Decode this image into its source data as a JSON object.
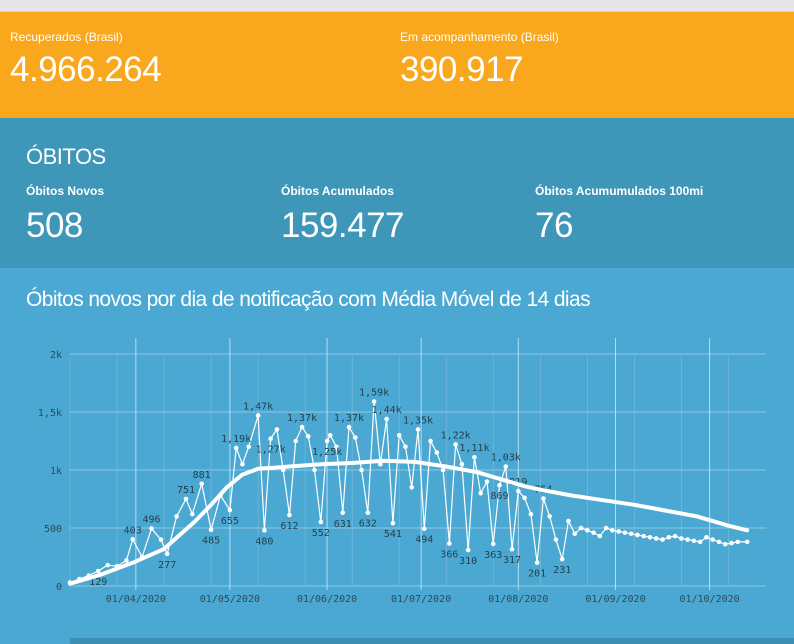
{
  "summary": {
    "recuperados_label": "Recuperados (Brasil)",
    "recuperados_value": "4.966.264",
    "acompanhamento_label": "Em acompanhamento (Brasil)",
    "acompanhamento_value": "390.917"
  },
  "obitos": {
    "title": "ÓBITOS",
    "novos_label": "Óbitos Novos",
    "novos_value": "508",
    "acumulados_label": "Óbitos Acumulados",
    "acumulados_value": "159.477",
    "acum100_label": "Óbitos Acumumulados 100mi",
    "acum100_value": "76"
  },
  "colors": {
    "orange": "#f9a71c",
    "teal": "#3e97b9",
    "chart_bg": "#4aa8d2",
    "line": "#ffffff"
  },
  "chart_title": "Óbitos novos por dia de notificação com Média Móvel de 14 dias",
  "chart_data": {
    "type": "line",
    "title": "Óbitos novos por dia de notificação com Média Móvel de 14 dias",
    "ylim": [
      0,
      2000
    ],
    "y_ticks": [
      "0",
      "500",
      "1k",
      "1,5k",
      "2k"
    ],
    "y_tick_values": [
      0,
      500,
      1000,
      1500,
      2000
    ],
    "x_ticks": [
      "01/04/2020",
      "01/05/2020",
      "01/06/2020",
      "01/07/2020",
      "01/08/2020",
      "01/09/2020",
      "01/10/2020"
    ],
    "x_tick_days": [
      21,
      51,
      82,
      112,
      143,
      174,
      204
    ],
    "x_start": "2020-03-11",
    "grid": true,
    "series": [
      {
        "name": "Óbitos novos",
        "x": [
          0,
          3,
          6,
          9,
          12,
          15,
          18,
          20,
          23,
          26,
          29,
          31,
          34,
          37,
          39,
          42,
          45,
          48,
          51,
          53,
          55,
          57,
          60,
          62,
          64,
          66,
          68,
          70,
          72,
          74,
          76,
          78,
          80,
          82,
          83,
          85,
          87,
          89,
          91,
          93,
          95,
          97,
          99,
          101,
          103,
          105,
          107,
          109,
          111,
          113,
          115,
          117,
          119,
          121,
          123,
          125,
          127,
          129,
          131,
          133,
          135,
          137,
          139,
          141,
          143,
          145,
          147,
          149,
          151,
          153,
          155,
          157,
          159,
          161,
          163,
          165,
          167,
          169,
          171,
          173,
          175,
          177,
          179,
          181,
          183,
          185,
          187,
          189,
          191,
          193,
          195,
          197,
          199,
          201,
          203,
          205,
          207,
          209,
          211,
          213,
          216
        ],
        "y": [
          30,
          60,
          90,
          129,
          180,
          170,
          220,
          403,
          250,
          496,
          400,
          277,
          600,
          751,
          620,
          881,
          485,
          780,
          655,
          1190,
          1050,
          1200,
          1470,
          480,
          1270,
          1350,
          1000,
          612,
          1250,
          1370,
          1290,
          1000,
          552,
          1250,
          1300,
          1200,
          631,
          1370,
          1280,
          1000,
          632,
          1590,
          1050,
          1440,
          541,
          1300,
          1200,
          850,
          1350,
          494,
          1250,
          1150,
          1000,
          366,
          1220,
          1050,
          310,
          1110,
          800,
          900,
          363,
          869,
          1030,
          317,
          819,
          760,
          620,
          201,
          754,
          600,
          400,
          231,
          560,
          450,
          500,
          480,
          460,
          430,
          500,
          480,
          470,
          460,
          450,
          440,
          430,
          420,
          410,
          400,
          420,
          430,
          410,
          400,
          390,
          380,
          420,
          400,
          380,
          360,
          370,
          380,
          380
        ],
        "labels": [
          {
            "i": 3,
            "text": "129"
          },
          {
            "i": 7,
            "text": "403"
          },
          {
            "i": 9,
            "text": "496"
          },
          {
            "i": 11,
            "text": "277"
          },
          {
            "i": 13,
            "text": "751"
          },
          {
            "i": 15,
            "text": "881"
          },
          {
            "i": 16,
            "text": "485"
          },
          {
            "i": 18,
            "text": "655"
          },
          {
            "i": 19,
            "text": "1,19k"
          },
          {
            "i": 22,
            "text": "1,47k"
          },
          {
            "i": 23,
            "text": "480"
          },
          {
            "i": 24,
            "text": "1,27k"
          },
          {
            "i": 27,
            "text": "612"
          },
          {
            "i": 29,
            "text": "1,37k"
          },
          {
            "i": 32,
            "text": "552"
          },
          {
            "i": 33,
            "text": "1,25k"
          },
          {
            "i": 36,
            "text": "631"
          },
          {
            "i": 37,
            "text": "1,37k"
          },
          {
            "i": 40,
            "text": "632"
          },
          {
            "i": 41,
            "text": "1,59k"
          },
          {
            "i": 43,
            "text": "1,44k"
          },
          {
            "i": 44,
            "text": "541"
          },
          {
            "i": 48,
            "text": "1,35k"
          },
          {
            "i": 49,
            "text": "494"
          },
          {
            "i": 53,
            "text": "366"
          },
          {
            "i": 54,
            "text": "1,22k"
          },
          {
            "i": 56,
            "text": "310"
          },
          {
            "i": 57,
            "text": "1,11k"
          },
          {
            "i": 60,
            "text": "363"
          },
          {
            "i": 61,
            "text": "869"
          },
          {
            "i": 62,
            "text": "1,03k"
          },
          {
            "i": 63,
            "text": "317"
          },
          {
            "i": 64,
            "text": "819"
          },
          {
            "i": 67,
            "text": "201"
          },
          {
            "i": 68,
            "text": "754"
          },
          {
            "i": 71,
            "text": "231"
          }
        ]
      },
      {
        "name": "Média Móvel de 14 dias",
        "x": [
          0,
          10,
          20,
          30,
          40,
          45,
          50,
          55,
          60,
          65,
          70,
          80,
          90,
          100,
          110,
          120,
          130,
          140,
          145,
          150,
          160,
          170,
          180,
          190,
          200,
          210,
          216
        ],
        "y": [
          20,
          100,
          200,
          320,
          560,
          700,
          850,
          960,
          1010,
          1020,
          1030,
          1050,
          1060,
          1080,
          1070,
          1030,
          980,
          900,
          860,
          830,
          780,
          740,
          700,
          650,
          600,
          520,
          480
        ]
      }
    ]
  }
}
